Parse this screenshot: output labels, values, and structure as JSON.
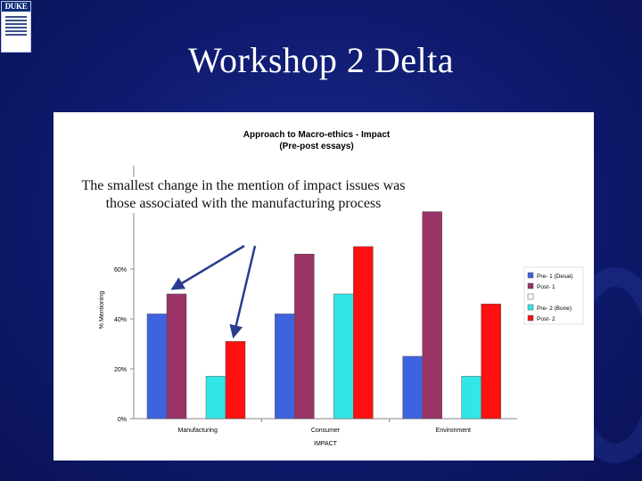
{
  "slide": {
    "title": "Workshop 2 Delta",
    "logo_text": "DUKE",
    "callout": "The smallest change in the mention of impact issues was those associated with the manufacturing process"
  },
  "colors": {
    "background": "#0f1a6e",
    "series": [
      "#3e63e0",
      "#993366",
      "#ffffff",
      "#33e6e6",
      "#ff1010"
    ]
  },
  "chart_data": {
    "type": "bar",
    "title_lines": [
      "Approach to Macro-ethics - Impact",
      "(Pre-post essays)"
    ],
    "xlabel": "IMPACT",
    "ylabel": "% Mentioning",
    "categories": [
      "Manufacturing",
      "Consumer",
      "Environment"
    ],
    "ylim": [
      0,
      80
    ],
    "yticks": [
      0,
      20,
      40,
      60
    ],
    "ytick_labels": [
      "0%",
      "20%",
      "40%",
      "60%"
    ],
    "series": [
      {
        "name": "Pre- 1 (Desai)",
        "values": [
          42,
          42,
          25
        ]
      },
      {
        "name": "Post- 1",
        "values": [
          50,
          66,
          83
        ]
      },
      {
        "name": "",
        "values": [
          null,
          null,
          null
        ]
      },
      {
        "name": "Pre- 2 (Bone)",
        "values": [
          17,
          50,
          17
        ]
      },
      {
        "name": "Post- 2",
        "values": [
          31,
          69,
          46
        ]
      }
    ],
    "annotations": [
      "arrow-to-manufacturing-post-1",
      "arrow-to-manufacturing-post-2"
    ],
    "legend_position": "right",
    "grid": false
  }
}
